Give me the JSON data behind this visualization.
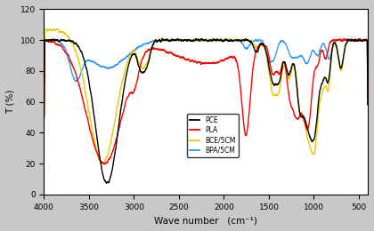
{
  "title": "",
  "xlabel": "Wave number   (cm⁻¹)",
  "ylabel": "T (%)",
  "xlim": [
    4000,
    400
  ],
  "ylim": [
    0,
    120
  ],
  "yticks": [
    0,
    20,
    40,
    60,
    80,
    100,
    120
  ],
  "xticks": [
    4000,
    3500,
    3000,
    2500,
    2000,
    1500,
    1000,
    500
  ],
  "background_color": "#c8c8c8",
  "plot_bg_color": "#ffffff",
  "legend_labels": [
    "PCE",
    "PLA",
    "BCE/5CM",
    "BPA/5CM"
  ],
  "legend_colors": [
    "black",
    "red",
    "#e8c800",
    "#3399ff"
  ],
  "line_width": 1.0
}
